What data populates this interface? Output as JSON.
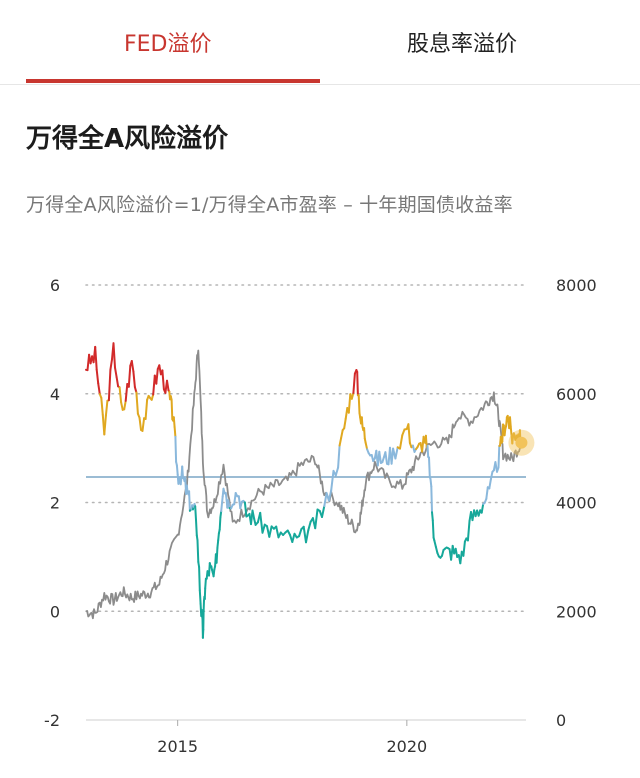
{
  "tabs": [
    {
      "label": "FED溢价",
      "active": true
    },
    {
      "label": "股息率溢价",
      "active": false
    }
  ],
  "title": "万得全A风险溢价",
  "subtitle": "万得全A风险溢价=1/万得全A市盈率 – 十年期国债收益率",
  "colors": {
    "accent": "#c8362f",
    "premium_high": "#d22a2a",
    "premium_mid": "#e0a820",
    "premium_low": "#8ab8dc",
    "premium_very_low": "#16a89a",
    "index": "#8c8c8c",
    "reference_line": "#7aa6c6",
    "marker": "#f2c35a"
  },
  "chart_data": {
    "type": "line",
    "left_axis": {
      "ticks": [
        "6",
        "4",
        "2",
        "0",
        "-2"
      ],
      "range": [
        -2,
        6
      ]
    },
    "right_axis": {
      "ticks": [
        "8000",
        "6000",
        "4000",
        "2000",
        "0"
      ],
      "range": [
        0,
        8000
      ]
    },
    "x_axis": {
      "ticks": [
        "2015",
        "2020"
      ],
      "range": [
        2013.0,
        2022.6
      ]
    },
    "grid": "dotted horizontal",
    "reference_line": 2.47,
    "series": [
      {
        "axis": "left",
        "x": [
          2013.0,
          2013.2,
          2013.4,
          2013.6,
          2013.8,
          2014.0,
          2014.2,
          2014.4,
          2014.6,
          2014.8,
          2014.9,
          2015.0,
          2015.1,
          2015.2,
          2015.3,
          2015.4,
          2015.5,
          2015.55,
          2015.6,
          2015.7,
          2015.8,
          2015.9,
          2016.0,
          2016.1,
          2016.3,
          2016.5,
          2016.7,
          2017.0,
          2017.3,
          2017.6,
          2017.9,
          2018.2,
          2018.5,
          2018.7,
          2018.9,
          2019.0,
          2019.1,
          2019.3,
          2019.5,
          2019.7,
          2020.0,
          2020.2,
          2020.4,
          2020.5,
          2020.6,
          2020.8,
          2021.0,
          2021.2,
          2021.4,
          2021.6,
          2021.8,
          2022.0,
          2022.1,
          2022.2,
          2022.3,
          2022.4,
          2022.5
        ],
        "values": [
          4.5,
          4.7,
          3.3,
          4.8,
          3.6,
          4.6,
          3.4,
          3.9,
          4.5,
          4.0,
          3.6,
          2.5,
          2.5,
          2.2,
          1.9,
          1.8,
          0.2,
          -0.4,
          0.5,
          0.8,
          0.6,
          1.5,
          2.4,
          2.0,
          2.2,
          1.8,
          1.7,
          1.5,
          1.4,
          1.3,
          1.5,
          1.9,
          2.8,
          3.7,
          4.4,
          3.5,
          3.2,
          2.8,
          2.8,
          2.9,
          3.4,
          2.9,
          3.2,
          2.6,
          1.2,
          1.1,
          1.1,
          1.0,
          1.7,
          1.9,
          2.2,
          2.8,
          3.3,
          3.6,
          3.2,
          3.3,
          3.1
        ]
      },
      {
        "axis": "right",
        "x": [
          2013.0,
          2013.2,
          2013.4,
          2013.6,
          2013.8,
          2014.0,
          2014.2,
          2014.4,
          2014.6,
          2014.8,
          2015.0,
          2015.2,
          2015.35,
          2015.45,
          2015.55,
          2015.65,
          2015.8,
          2016.0,
          2016.2,
          2016.5,
          2016.8,
          2017.1,
          2017.4,
          2017.7,
          2018.0,
          2018.2,
          2018.5,
          2018.7,
          2018.9,
          2019.0,
          2019.1,
          2019.3,
          2019.6,
          2019.9,
          2020.1,
          2020.3,
          2020.6,
          2020.9,
          2021.1,
          2021.4,
          2021.7,
          2021.9,
          2022.0,
          2022.1,
          2022.3,
          2022.5
        ],
        "values": [
          2000,
          1950,
          2300,
          2200,
          2350,
          2250,
          2300,
          2350,
          2500,
          3000,
          3400,
          4300,
          5800,
          6900,
          4800,
          3800,
          4000,
          4700,
          3600,
          3900,
          4200,
          4300,
          4400,
          4700,
          4800,
          4200,
          4000,
          3700,
          3500,
          3800,
          4400,
          4700,
          4400,
          4300,
          4600,
          4900,
          5100,
          5100,
          5600,
          5500,
          5800,
          6000,
          5600,
          4900,
          4800,
          5100
        ]
      }
    ]
  }
}
